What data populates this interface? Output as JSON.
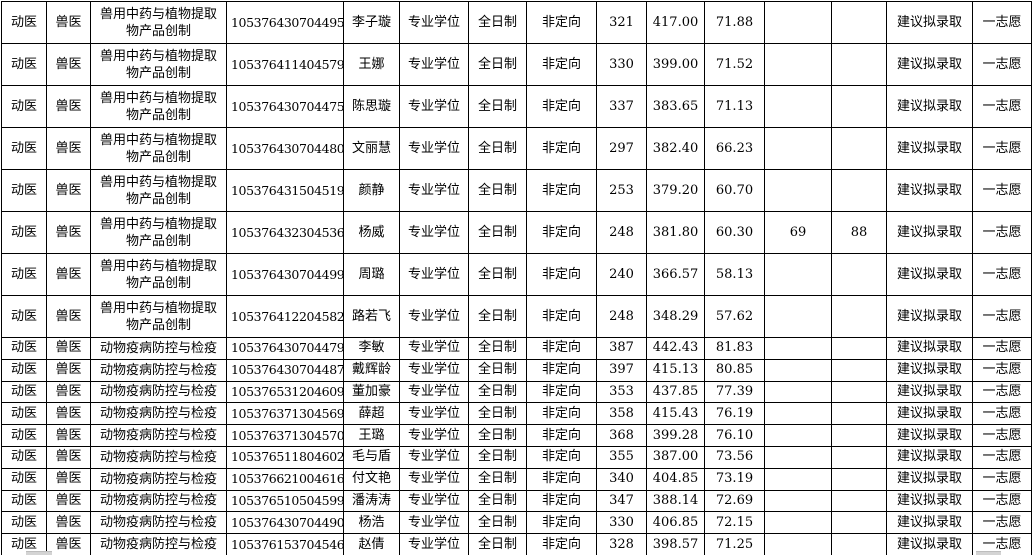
{
  "table": {
    "rows": [
      [
        "动医",
        "兽医",
        "兽用中药与植物提取物产品创制",
        "105376430704495",
        "李子璇",
        "专业学位",
        "全日制",
        "非定向",
        "321",
        "417.00",
        "71.88",
        "",
        "",
        "建议拟录取",
        "一志愿"
      ],
      [
        "动医",
        "兽医",
        "兽用中药与植物提取物产品创制",
        "105376411404579",
        "王娜",
        "专业学位",
        "全日制",
        "非定向",
        "330",
        "399.00",
        "71.52",
        "",
        "",
        "建议拟录取",
        "一志愿"
      ],
      [
        "动医",
        "兽医",
        "兽用中药与植物提取物产品创制",
        "105376430704475",
        "陈思璇",
        "专业学位",
        "全日制",
        "非定向",
        "337",
        "383.65",
        "71.13",
        "",
        "",
        "建议拟录取",
        "一志愿"
      ],
      [
        "动医",
        "兽医",
        "兽用中药与植物提取物产品创制",
        "105376430704480",
        "文丽慧",
        "专业学位",
        "全日制",
        "非定向",
        "297",
        "382.40",
        "66.23",
        "",
        "",
        "建议拟录取",
        "一志愿"
      ],
      [
        "动医",
        "兽医",
        "兽用中药与植物提取物产品创制",
        "105376431504519",
        "颜静",
        "专业学位",
        "全日制",
        "非定向",
        "253",
        "379.20",
        "60.70",
        "",
        "",
        "建议拟录取",
        "一志愿"
      ],
      [
        "动医",
        "兽医",
        "兽用中药与植物提取物产品创制",
        "105376432304536",
        "杨威",
        "专业学位",
        "全日制",
        "非定向",
        "248",
        "381.80",
        "60.30",
        "69",
        "88",
        "建议拟录取",
        "一志愿"
      ],
      [
        "动医",
        "兽医",
        "兽用中药与植物提取物产品创制",
        "105376430704499",
        "周璐",
        "专业学位",
        "全日制",
        "非定向",
        "240",
        "366.57",
        "58.13",
        "",
        "",
        "建议拟录取",
        "一志愿"
      ],
      [
        "动医",
        "兽医",
        "兽用中药与植物提取物产品创制",
        "105376412204582",
        "路若飞",
        "专业学位",
        "全日制",
        "非定向",
        "248",
        "348.29",
        "57.62",
        "",
        "",
        "建议拟录取",
        "一志愿"
      ],
      [
        "动医",
        "兽医",
        "动物疫病防控与检疫",
        "105376430704479",
        "李敏",
        "专业学位",
        "全日制",
        "非定向",
        "387",
        "442.43",
        "81.83",
        "",
        "",
        "建议拟录取",
        "一志愿"
      ],
      [
        "动医",
        "兽医",
        "动物疫病防控与检疫",
        "105376430704487",
        "戴辉龄",
        "专业学位",
        "全日制",
        "非定向",
        "397",
        "415.13",
        "80.85",
        "",
        "",
        "建议拟录取",
        "一志愿"
      ],
      [
        "动医",
        "兽医",
        "动物疫病防控与检疫",
        "105376531204609",
        "董加豪",
        "专业学位",
        "全日制",
        "非定向",
        "353",
        "437.85",
        "77.39",
        "",
        "",
        "建议拟录取",
        "一志愿"
      ],
      [
        "动医",
        "兽医",
        "动物疫病防控与检疫",
        "105376371304569",
        "薛超",
        "专业学位",
        "全日制",
        "非定向",
        "358",
        "415.43",
        "76.19",
        "",
        "",
        "建议拟录取",
        "一志愿"
      ],
      [
        "动医",
        "兽医",
        "动物疫病防控与检疫",
        "105376371304570",
        "王璐",
        "专业学位",
        "全日制",
        "非定向",
        "368",
        "399.28",
        "76.10",
        "",
        "",
        "建议拟录取",
        "一志愿"
      ],
      [
        "动医",
        "兽医",
        "动物疫病防控与检疫",
        "105376511804602",
        "毛与盾",
        "专业学位",
        "全日制",
        "非定向",
        "355",
        "387.00",
        "73.56",
        "",
        "",
        "建议拟录取",
        "一志愿"
      ],
      [
        "动医",
        "兽医",
        "动物疫病防控与检疫",
        "105376621004616",
        "付文艳",
        "专业学位",
        "全日制",
        "非定向",
        "340",
        "404.85",
        "73.19",
        "",
        "",
        "建议拟录取",
        "一志愿"
      ],
      [
        "动医",
        "兽医",
        "动物疫病防控与检疫",
        "105376510504599",
        "潘涛涛",
        "专业学位",
        "全日制",
        "非定向",
        "347",
        "388.14",
        "72.69",
        "",
        "",
        "建议拟录取",
        "一志愿"
      ],
      [
        "动医",
        "兽医",
        "动物疫病防控与检疫",
        "105376430704490",
        "杨浩",
        "专业学位",
        "全日制",
        "非定向",
        "330",
        "406.85",
        "72.15",
        "",
        "",
        "建议拟录取",
        "一志愿"
      ],
      [
        "动医",
        "兽医",
        "动物疫病防控与检疫",
        "105376153704546",
        "赵倩",
        "专业学位",
        "全日制",
        "非定向",
        "328",
        "398.57",
        "71.25",
        "",
        "",
        "建议拟录取",
        "一志愿"
      ]
    ]
  }
}
